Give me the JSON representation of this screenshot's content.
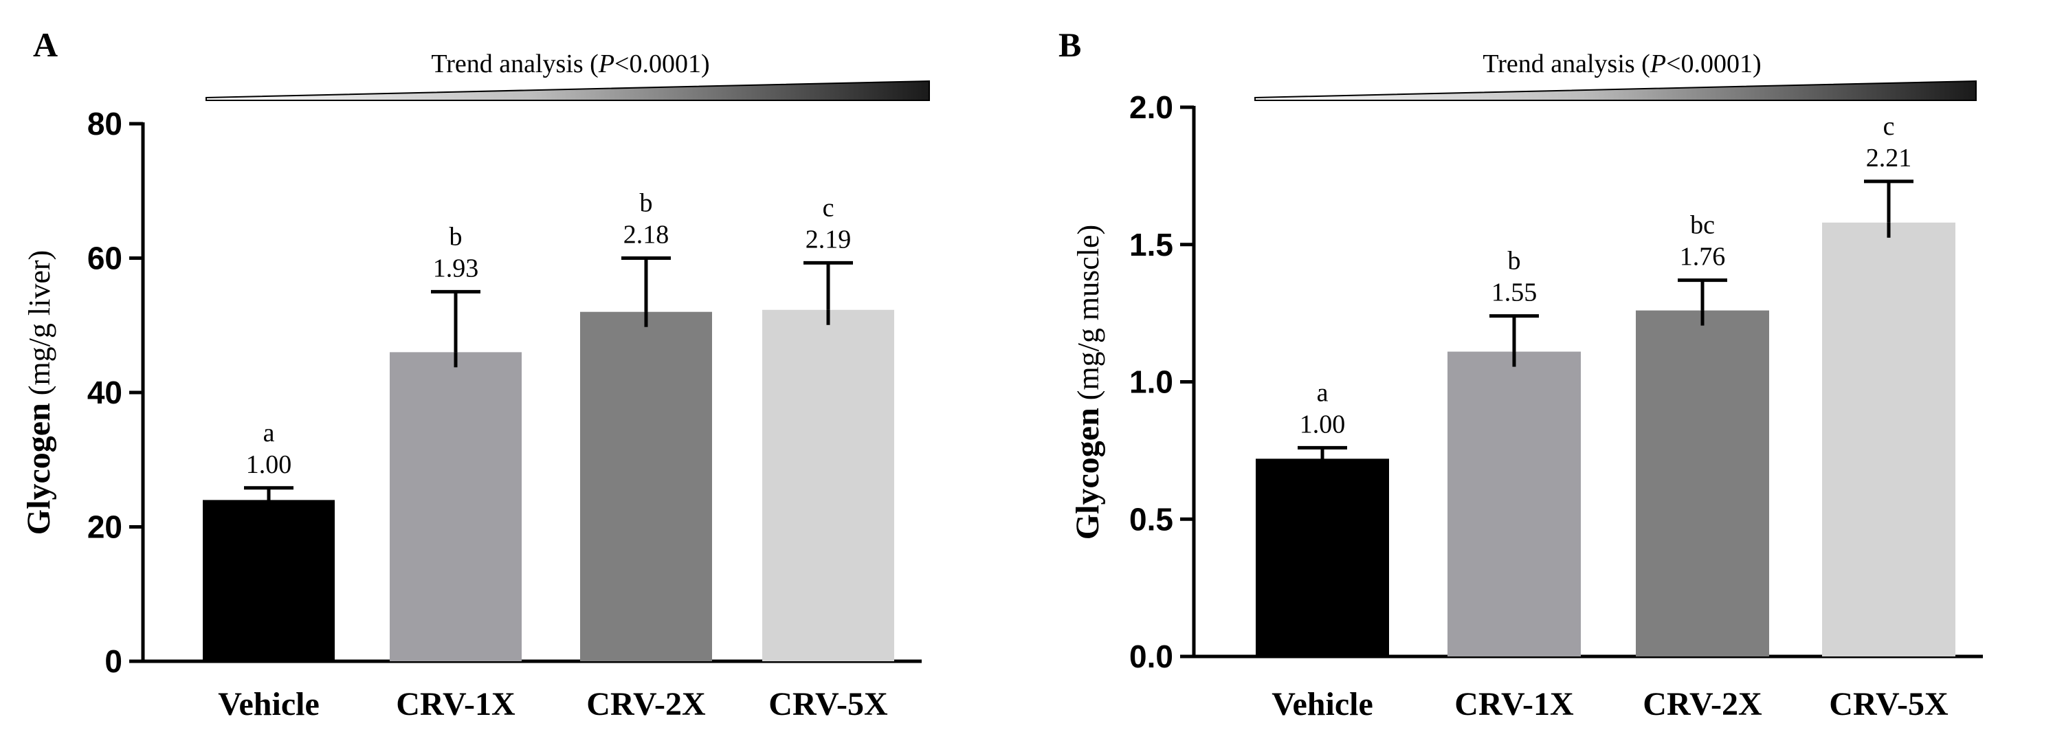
{
  "chart_data": [
    {
      "type": "bar",
      "panel_label": "A",
      "trend_label": {
        "prefix": "Trend analysis (",
        "p_symbol": "P",
        "suffix": "<0.0001)"
      },
      "ylabel": {
        "bold": "Glycogen",
        "unit": "(mg/g liver)"
      },
      "xlabel": "",
      "ylim": [
        0,
        80
      ],
      "yticks": [
        0,
        20,
        40,
        60,
        80
      ],
      "categories": [
        "Vehicle",
        "CRV-1X",
        "CRV-2X",
        "CRV-5X"
      ],
      "values": [
        24,
        46,
        52,
        52.3
      ],
      "errors": [
        1.8,
        9,
        8,
        7
      ],
      "fold_labels": [
        "1.00",
        "1.93",
        "2.18",
        "2.19"
      ],
      "sig_letters": [
        "a",
        "b",
        "b",
        "c"
      ],
      "colors": [
        "#000000",
        "#a09fa4",
        "#7f7f7f",
        "#d4d4d4"
      ],
      "grid": false
    },
    {
      "type": "bar",
      "panel_label": "B",
      "trend_label": {
        "prefix": "Trend analysis (",
        "p_symbol": "P",
        "suffix": "<0.0001)"
      },
      "ylabel": {
        "bold": "Glycogen",
        "unit": "(mg/g muscle)"
      },
      "xlabel": "",
      "ylim": [
        0,
        2.0
      ],
      "yticks": [
        "0.0",
        "0.5",
        "1.0",
        "1.5",
        "2.0"
      ],
      "categories": [
        "Vehicle",
        "CRV-1X",
        "CRV-2X",
        "CRV-5X"
      ],
      "values": [
        0.72,
        1.11,
        1.26,
        1.58
      ],
      "errors": [
        0.04,
        0.13,
        0.11,
        0.15
      ],
      "fold_labels": [
        "1.00",
        "1.55",
        "1.76",
        "2.21"
      ],
      "sig_letters": [
        "a",
        "b",
        "bc",
        "c"
      ],
      "colors": [
        "#000000",
        "#a09fa4",
        "#7f7f7f",
        "#d4d4d4"
      ],
      "grid": false
    }
  ]
}
